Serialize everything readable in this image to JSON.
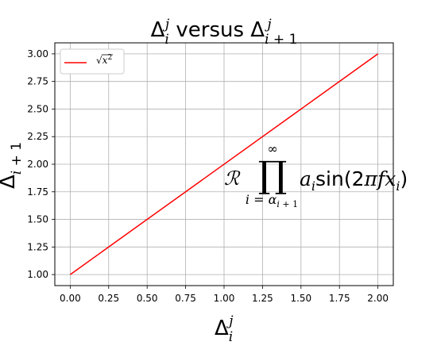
{
  "chart_data": {
    "type": "line",
    "title": "Δ_i^j versus Δ_{i+1}^j",
    "xlabel": "Δ_i^j",
    "ylabel": "Δ_{i+1}",
    "xlim": [
      -0.1,
      2.1
    ],
    "ylim": [
      0.9,
      3.1
    ],
    "grid": true,
    "legend_position": "top-left",
    "x_ticks": [
      "0.00",
      "0.25",
      "0.50",
      "0.75",
      "1.00",
      "1.25",
      "1.50",
      "1.75",
      "2.00"
    ],
    "y_ticks": [
      "1.00",
      "1.25",
      "1.50",
      "1.75",
      "2.00",
      "2.25",
      "2.50",
      "2.75",
      "3.00"
    ],
    "series": [
      {
        "name": "√(x²)",
        "color": "#ff0000",
        "x": [
          0,
          2
        ],
        "y": [
          1,
          3
        ]
      }
    ],
    "annotation": {
      "text": "ℛ ∏_{i=α_{i+1}}^{∞} a_i sin(2π f x_i)",
      "x": 1.0,
      "y": 1.75
    }
  }
}
